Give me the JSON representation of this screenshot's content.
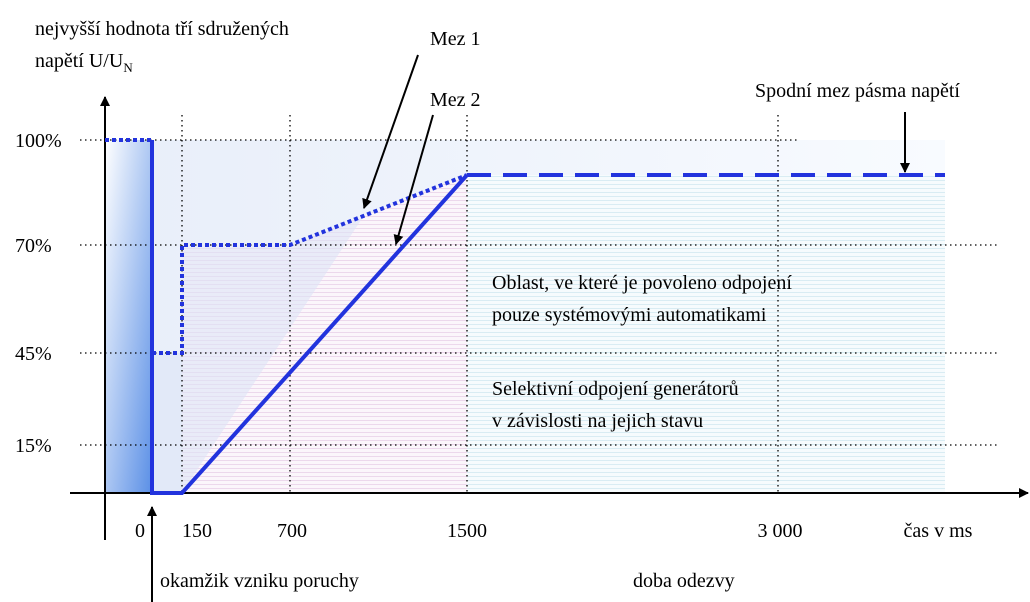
{
  "title": {
    "line1": "nejvyšší hodnota tří sdružených",
    "line2": "napětí U/U",
    "subscript": "N"
  },
  "y_labels": [
    "100%",
    "70%",
    "45%",
    "15%"
  ],
  "x_labels": [
    "0",
    "150",
    "700",
    "1500",
    "3 000",
    "čas v ms"
  ],
  "annotations": {
    "mez1": "Mez 1",
    "mez2": "Mez 2",
    "lower_limit": "Spodní mez pásma napětí"
  },
  "regions": {
    "upper": [
      "Oblast, ve které je povoleno odpojení",
      "pouze systémovými automatikami"
    ],
    "lower": [
      "Selektivní odpojení generátorů",
      "v závislosti na jejich stavu"
    ]
  },
  "bottom": {
    "fault": "okamžik vzniku poruchy",
    "response": "doba odezvy"
  }
}
